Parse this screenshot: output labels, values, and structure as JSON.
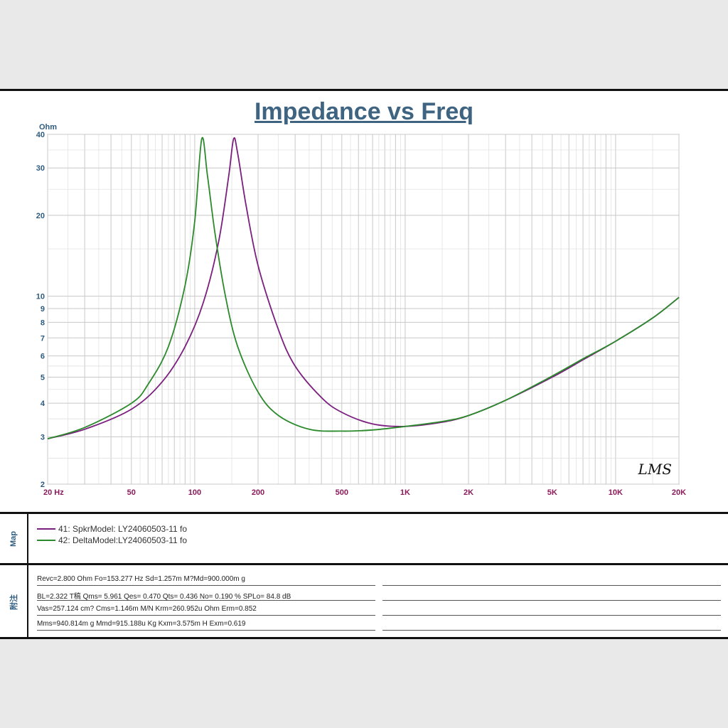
{
  "title": "Impedance vs Freq",
  "legend_side_label": "Map",
  "notes_side_label": "附注",
  "legend": [
    {
      "label": "41: SpkrModel: LY24060503-11 fo",
      "color": "#7b1f7f"
    },
    {
      "label": "42: DeltaModel:LY24060503-11 fo",
      "color": "#2b8a2b"
    }
  ],
  "notes": [
    "Revc=2.800 Ohm  Fo=153.277 Hz  Sd=1.257m M?Md=900.000m g",
    "BL=2.322 T稿  Qms= 5.961  Qes= 0.470  Qts= 0.436  No= 0.190 %  SPLo= 84.8 dB",
    "Vas=257.124 cm? Cms=1.146m M/N  Krm=260.952u Ohm  Erm=0.852",
    "Mms=940.814m g  Mmd=915.188u Kg  Kxm=3.575m H  Exm=0.619"
  ],
  "watermark": "LMS",
  "chart_data": {
    "type": "line",
    "title": "Impedance vs Freq",
    "ylabel": "Ohm",
    "xlabel": "",
    "x_scale": "log",
    "y_scale": "log",
    "xlim": [
      20,
      20000
    ],
    "ylim": [
      2,
      40
    ],
    "grid": true,
    "x_ticks": [
      {
        "v": 20,
        "label": "20  Hz"
      },
      {
        "v": 50,
        "label": "50"
      },
      {
        "v": 100,
        "label": "100"
      },
      {
        "v": 200,
        "label": "200"
      },
      {
        "v": 500,
        "label": "500"
      },
      {
        "v": 1000,
        "label": "1K"
      },
      {
        "v": 2000,
        "label": "2K"
      },
      {
        "v": 5000,
        "label": "5K"
      },
      {
        "v": 10000,
        "label": "10K"
      },
      {
        "v": 20000,
        "label": "20K"
      }
    ],
    "y_ticks": [
      {
        "v": 40,
        "label": "40"
      },
      {
        "v": 30,
        "label": "30"
      },
      {
        "v": 20,
        "label": "20"
      },
      {
        "v": 10,
        "label": "10"
      },
      {
        "v": 9,
        "label": "9"
      },
      {
        "v": 8,
        "label": "8"
      },
      {
        "v": 7,
        "label": "7"
      },
      {
        "v": 6,
        "label": "6"
      },
      {
        "v": 5,
        "label": "5"
      },
      {
        "v": 4,
        "label": "4"
      },
      {
        "v": 3,
        "label": "3"
      },
      {
        "v": 2,
        "label": "2"
      }
    ],
    "series": [
      {
        "name": "41: SpkrModel: LY24060503-11 fo",
        "color": "#7b1f7f",
        "points": [
          [
            20,
            2.95
          ],
          [
            30,
            3.2
          ],
          [
            50,
            3.8
          ],
          [
            70,
            4.8
          ],
          [
            90,
            6.5
          ],
          [
            110,
            9.5
          ],
          [
            130,
            16
          ],
          [
            145,
            28
          ],
          [
            153,
            38.5
          ],
          [
            160,
            34
          ],
          [
            175,
            22
          ],
          [
            200,
            13
          ],
          [
            250,
            7.5
          ],
          [
            300,
            5.5
          ],
          [
            400,
            4.2
          ],
          [
            500,
            3.7
          ],
          [
            700,
            3.35
          ],
          [
            1000,
            3.28
          ],
          [
            1500,
            3.4
          ],
          [
            2000,
            3.6
          ],
          [
            3000,
            4.1
          ],
          [
            5000,
            5.0
          ],
          [
            7000,
            5.8
          ],
          [
            10000,
            6.8
          ],
          [
            15000,
            8.3
          ],
          [
            20000,
            9.9
          ]
        ]
      },
      {
        "name": "42: DeltaModel:LY24060503-11 fo",
        "color": "#2b8a2b",
        "points": [
          [
            20,
            2.95
          ],
          [
            30,
            3.25
          ],
          [
            50,
            4.0
          ],
          [
            60,
            4.7
          ],
          [
            75,
            6.5
          ],
          [
            90,
            11
          ],
          [
            100,
            19
          ],
          [
            108,
            38.5
          ],
          [
            115,
            28
          ],
          [
            125,
            17
          ],
          [
            140,
            10
          ],
          [
            160,
            6.5
          ],
          [
            200,
            4.4
          ],
          [
            250,
            3.6
          ],
          [
            350,
            3.2
          ],
          [
            500,
            3.15
          ],
          [
            700,
            3.18
          ],
          [
            1000,
            3.28
          ],
          [
            1500,
            3.42
          ],
          [
            2000,
            3.6
          ],
          [
            3000,
            4.1
          ],
          [
            5000,
            5.05
          ],
          [
            7000,
            5.85
          ],
          [
            10000,
            6.8
          ],
          [
            15000,
            8.3
          ],
          [
            20000,
            9.9
          ]
        ]
      }
    ]
  }
}
